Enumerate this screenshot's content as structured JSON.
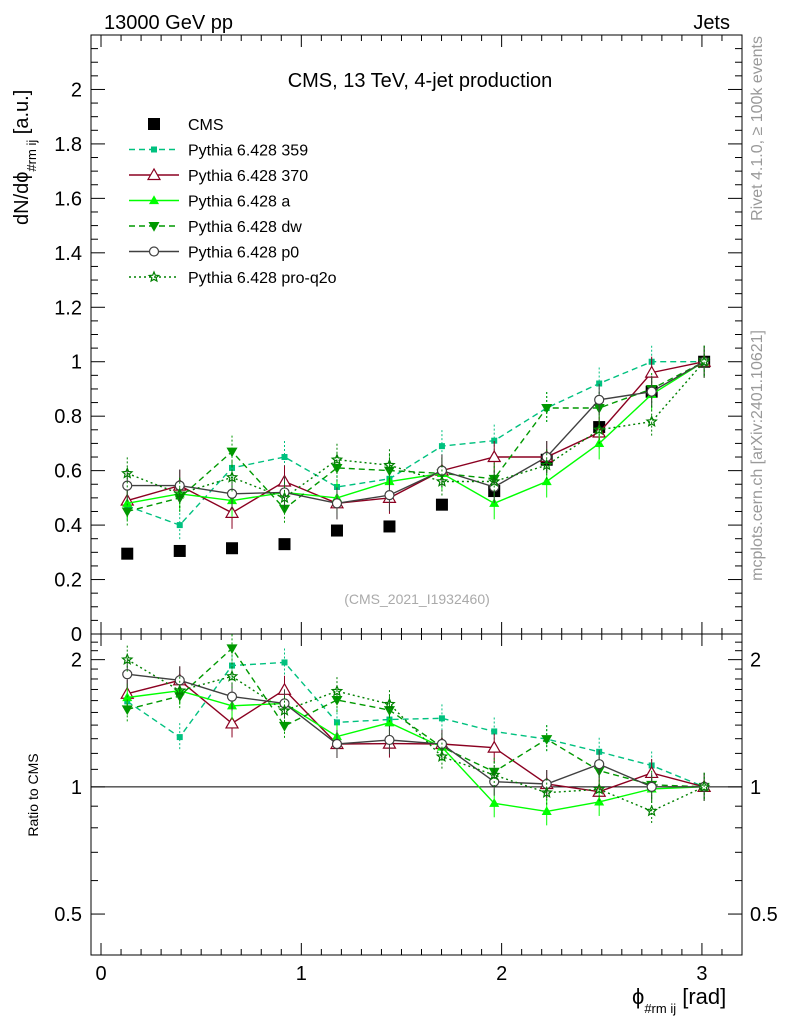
{
  "header": {
    "left": "13000 GeV pp",
    "right": "Jets",
    "side_top": "Rivet 4.1.0, ≥ 100k events",
    "side_bottom": "mcplots.cern.ch [arXiv:2401.10621]"
  },
  "colors": {
    "cms": "#000000",
    "p359": "#00c17f",
    "p370": "#8b0021",
    "pa": "#00ff00",
    "pdw": "#009900",
    "pp0": "#404040",
    "pq2o": "#008000"
  },
  "chart_data": {
    "type": "line",
    "title": "CMS, 13 TeV, 4-jet production",
    "analysis_label": "(CMS_2021_I1932460)",
    "xlabel": "ϕ#rm ij [rad]",
    "ylabel": "dN/dϕ#rm ij [a.u.]",
    "ratio_ylabel": "Ratio to CMS",
    "xlim": [
      -0.05,
      3.2
    ],
    "ylim": [
      0,
      2.2
    ],
    "ratio_ylim": [
      0.4,
      2.3
    ],
    "x_ticks": [
      "0",
      "1",
      "2",
      "3"
    ],
    "y_ticks": [
      "0",
      "0.2",
      "0.4",
      "0.6",
      "0.8",
      "1",
      "1.2",
      "1.4",
      "1.6",
      "1.8",
      "2"
    ],
    "ratio_ticks": [
      "0.5",
      "1",
      "2"
    ],
    "x": [
      0.131,
      0.393,
      0.654,
      0.916,
      1.178,
      1.44,
      1.702,
      1.963,
      2.225,
      2.487,
      2.749,
      3.011
    ],
    "series": [
      {
        "name": "CMS",
        "key": "cms",
        "values": [
          0.295,
          0.305,
          0.315,
          0.33,
          0.38,
          0.395,
          0.475,
          0.525,
          0.64,
          0.76,
          0.89,
          1.0
        ]
      },
      {
        "name": "Pythia 6.428 359",
        "key": "p359",
        "values": [
          0.47,
          0.4,
          0.61,
          0.65,
          0.54,
          0.57,
          0.69,
          0.71,
          0.83,
          0.92,
          1.0,
          1.0
        ]
      },
      {
        "name": "Pythia 6.428 370",
        "key": "p370",
        "values": [
          0.49,
          0.545,
          0.445,
          0.56,
          0.48,
          0.5,
          0.6,
          0.65,
          0.65,
          0.74,
          0.96,
          1.0
        ]
      },
      {
        "name": "Pythia 6.428 a",
        "key": "pa",
        "values": [
          0.48,
          0.515,
          0.49,
          0.52,
          0.5,
          0.56,
          0.59,
          0.48,
          0.56,
          0.7,
          0.88,
          1.0
        ]
      },
      {
        "name": "Pythia 6.428 dw",
        "key": "pdw",
        "values": [
          0.45,
          0.5,
          0.67,
          0.46,
          0.61,
          0.6,
          0.59,
          0.57,
          0.83,
          0.83,
          0.9,
          1.0
        ]
      },
      {
        "name": "Pythia 6.428 p0",
        "key": "pp0",
        "values": [
          0.545,
          0.545,
          0.515,
          0.52,
          0.48,
          0.51,
          0.6,
          0.54,
          0.65,
          0.86,
          0.89,
          1.0
        ]
      },
      {
        "name": "Pythia 6.428 pro-q2o",
        "key": "pq2o",
        "values": [
          0.59,
          0.515,
          0.575,
          0.5,
          0.64,
          0.62,
          0.56,
          0.56,
          0.62,
          0.75,
          0.78,
          1.0
        ]
      }
    ]
  }
}
